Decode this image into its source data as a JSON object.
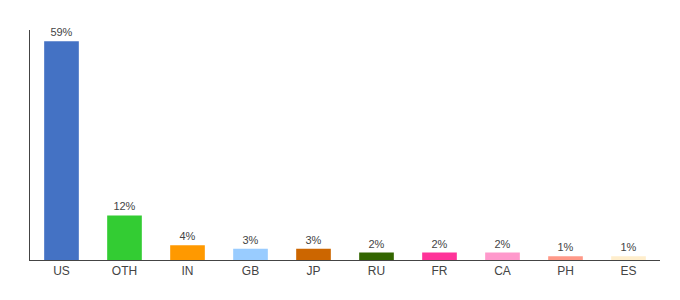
{
  "chart_data": {
    "type": "bar",
    "categories": [
      "US",
      "OTH",
      "IN",
      "GB",
      "JP",
      "RU",
      "FR",
      "CA",
      "PH",
      "ES"
    ],
    "values": [
      59,
      12,
      4,
      3,
      3,
      2,
      2,
      2,
      1,
      1
    ],
    "value_labels": [
      "59%",
      "12%",
      "4%",
      "3%",
      "3%",
      "2%",
      "2%",
      "2%",
      "1%",
      "1%"
    ],
    "colors": [
      "#4472c4",
      "#33cc33",
      "#ff9900",
      "#99ccff",
      "#cc6600",
      "#336600",
      "#ff3399",
      "#ff99cc",
      "#ff9988",
      "#ffeecc"
    ],
    "ylim": [
      0,
      62
    ],
    "grid": false,
    "data_labels": true,
    "tick_labels": "x"
  }
}
